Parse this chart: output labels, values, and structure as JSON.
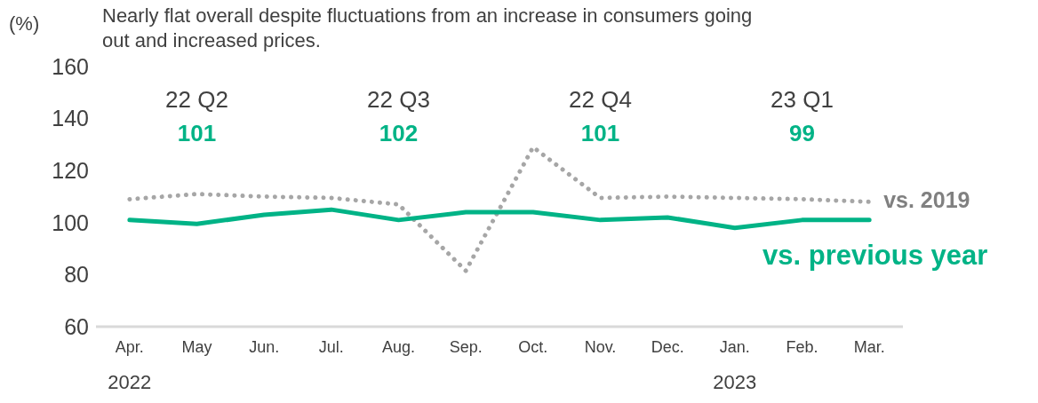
{
  "chart_data": {
    "type": "line",
    "title": "Nearly flat overall despite fluctuations from an increase in consumers going out and increased prices.",
    "ylabel": "(%)",
    "categories": [
      "Apr.",
      "May",
      "Jun.",
      "Jul.",
      "Aug.",
      "Sep.",
      "Oct.",
      "Nov.",
      "Dec.",
      "Jan.",
      "Feb.",
      "Mar."
    ],
    "series": [
      {
        "name": "vs. 2019",
        "color": "#a6a6a6",
        "line_style": "dotted",
        "values": [
          109,
          111,
          110,
          109.5,
          107,
          81.5,
          129,
          109.5,
          110,
          109.5,
          109,
          108
        ]
      },
      {
        "name": "vs. previous year",
        "color": "#00b386",
        "line_style": "solid",
        "values": [
          101,
          99.5,
          103,
          105,
          101,
          104,
          104,
          101,
          102,
          98,
          101,
          101
        ]
      }
    ],
    "ylim": [
      60,
      160
    ],
    "yticks": [
      60,
      80,
      100,
      120,
      140,
      160
    ],
    "grid": false,
    "marker": "none",
    "annotations": [
      "22 Q2",
      "101",
      "22 Q3",
      "102",
      "22 Q4",
      "101",
      "23 Q1",
      "99",
      "2022",
      "2023"
    ]
  }
}
